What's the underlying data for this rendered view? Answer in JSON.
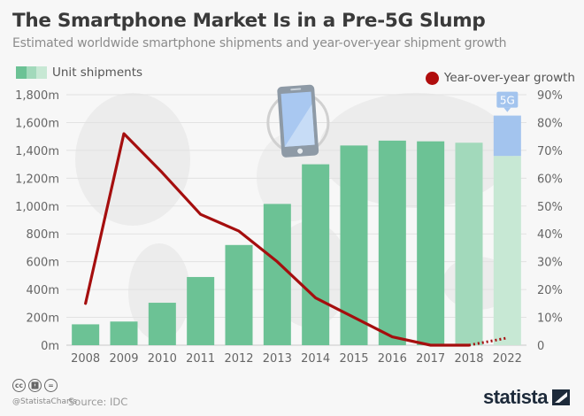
{
  "header": {
    "title": "The Smartphone Market Is in a Pre-5G Slump",
    "subtitle": "Estimated worldwide smartphone shipments and year-over-year shipment growth"
  },
  "colors": {
    "bar_actual": "#6cc295",
    "bar_2018": "#a2d9bb",
    "bar_2022": "#c7e8d4",
    "bar_5g": "#a3c4ee",
    "line": "#a50e0e",
    "legend_dot": "#b00d0d",
    "axis_text": "#666666",
    "grid": "#e2e2e2"
  },
  "legend": {
    "left_label": "Unit shipments",
    "right_label": "Year-over-year growth"
  },
  "annotation": {
    "fiveg_label": "5G"
  },
  "footer": {
    "handle": "@StatistaCharts",
    "source": "Source: IDC",
    "brand": "statista",
    "cc_icons": [
      "cc",
      "by",
      "nd"
    ]
  },
  "chart_data": {
    "type": "bar",
    "title": "The Smartphone Market Is in a Pre-5G Slump",
    "subtitle": "Estimated worldwide smartphone shipments and year-over-year shipment growth",
    "categories": [
      "2008",
      "2009",
      "2010",
      "2011",
      "2012",
      "2013",
      "2014",
      "2015",
      "2016",
      "2017",
      "2018",
      "2022"
    ],
    "series": [
      {
        "name": "Unit shipments",
        "type": "bar",
        "axis": "left",
        "unit": "m",
        "values": [
          150,
          170,
          305,
          490,
          720,
          1015,
          1300,
          1435,
          1470,
          1465,
          1455,
          1360
        ]
      },
      {
        "name": "5G",
        "type": "bar-stacked",
        "axis": "left",
        "unit": "m",
        "values": [
          null,
          null,
          null,
          null,
          null,
          null,
          null,
          null,
          null,
          null,
          null,
          290
        ]
      },
      {
        "name": "Year-over-year growth",
        "type": "line",
        "axis": "right",
        "unit": "%",
        "values": [
          15,
          76,
          62,
          47,
          41,
          30,
          17,
          10,
          3,
          0,
          0,
          2.6
        ],
        "dotted_from": "2018"
      }
    ],
    "bar_status": [
      "actual",
      "actual",
      "actual",
      "actual",
      "actual",
      "actual",
      "actual",
      "actual",
      "actual",
      "actual",
      "estimate",
      "forecast"
    ],
    "y_left": {
      "range": [
        0,
        1800
      ],
      "ticks": [
        "0m",
        "200m",
        "400m",
        "600m",
        "800m",
        "1,000m",
        "1,200m",
        "1,400m",
        "1,600m",
        "1,800m"
      ],
      "tick_values": [
        0,
        200,
        400,
        600,
        800,
        1000,
        1200,
        1400,
        1600,
        1800
      ]
    },
    "y_right": {
      "range": [
        0,
        90
      ],
      "ticks": [
        "0",
        "10%",
        "20%",
        "30%",
        "40%",
        "50%",
        "60%",
        "70%",
        "80%",
        "90%"
      ],
      "tick_values": [
        0,
        10,
        20,
        30,
        40,
        50,
        60,
        70,
        80,
        90
      ]
    },
    "xlabel": "",
    "ylabel": "",
    "grid": true,
    "legend": [
      "top-left: Unit shipments",
      "top-right: Year-over-year growth"
    ]
  }
}
